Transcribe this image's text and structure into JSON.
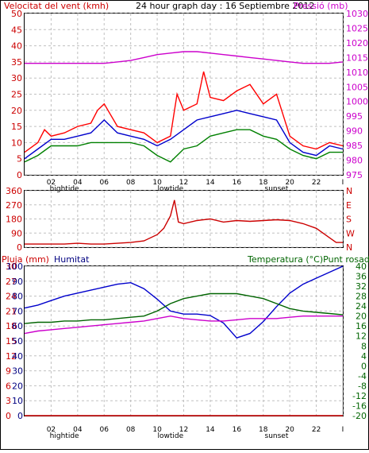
{
  "header": {
    "title": "24 hour graph day : 16 Septiembre 2012",
    "left_label": "Velocitat del vent (kmh)",
    "right_label": "Pressió (mb)"
  },
  "colors": {
    "wind_avg": "#008000",
    "wind_gust": "#ff0000",
    "wind_mid": "#0000cc",
    "pressure": "#cc00cc",
    "direction": "#cc0000",
    "humidity": "#0000cc",
    "temperature": "#006400",
    "dewpoint": "#cc00cc",
    "rain": "#cc0000",
    "left_axis": "#cc0000",
    "pressure_axis": "#cc00cc",
    "temp_axis": "#006400",
    "hum_axis": "#000080",
    "grid": "#c0c0c0",
    "frame": "#000000"
  },
  "x_axis": {
    "ticks": [
      "02",
      "04",
      "06",
      "08",
      "10",
      "12",
      "14",
      "16",
      "18",
      "20",
      "22",
      "I"
    ],
    "markers": [
      {
        "label": "hightide",
        "hour": 3
      },
      {
        "label": "lowtide",
        "hour": 11
      },
      {
        "label": "sunset",
        "hour": 19
      }
    ]
  },
  "chart_data": [
    {
      "type": "line",
      "x_label": "hour",
      "ylabel": "Velocitat del vent (kmh)",
      "ylim": [
        0,
        50
      ],
      "y_ticks": [
        0,
        5,
        10,
        15,
        20,
        25,
        30,
        35,
        40,
        45,
        50
      ],
      "y2label": "Pressió (mb)",
      "y2lim": [
        975,
        1030
      ],
      "y2_ticks": [
        975,
        980,
        985,
        990,
        995,
        1000,
        1005,
        1010,
        1015,
        1020,
        1025,
        1030
      ],
      "series": [
        {
          "key": "wind_gust",
          "x": [
            0,
            1,
            1.5,
            2,
            3,
            4,
            5,
            5.5,
            6,
            7,
            8,
            9,
            10,
            11,
            11.5,
            12,
            13,
            13.5,
            14,
            15,
            16,
            17,
            18,
            19,
            20,
            21,
            22,
            23,
            24
          ],
          "y": [
            7,
            10,
            14,
            12,
            13,
            15,
            16,
            20,
            22,
            15,
            14,
            13,
            10,
            12,
            25,
            20,
            22,
            32,
            24,
            23,
            26,
            28,
            22,
            25,
            12,
            9,
            8,
            10,
            9
          ]
        },
        {
          "key": "wind_mid",
          "x": [
            0,
            1,
            2,
            3,
            4,
            5,
            6,
            7,
            8,
            9,
            10,
            11,
            12,
            13,
            14,
            15,
            16,
            17,
            18,
            19,
            20,
            21,
            22,
            23,
            24
          ],
          "y": [
            5,
            8,
            11,
            11,
            12,
            13,
            17,
            13,
            12,
            11,
            9,
            11,
            14,
            17,
            18,
            19,
            20,
            19,
            18,
            17,
            10,
            7,
            6,
            9,
            8
          ]
        },
        {
          "key": "wind_avg",
          "x": [
            0,
            1,
            2,
            3,
            4,
            5,
            6,
            7,
            8,
            9,
            10,
            11,
            12,
            13,
            14,
            15,
            16,
            17,
            18,
            19,
            20,
            21,
            22,
            23,
            24
          ],
          "y": [
            4,
            6,
            9,
            9,
            9,
            10,
            10,
            10,
            10,
            9,
            6,
            4,
            8,
            9,
            12,
            13,
            14,
            14,
            12,
            11,
            8,
            6,
            5,
            7,
            7
          ]
        },
        {
          "key": "pressure",
          "axis": "y2",
          "x": [
            0,
            1,
            2,
            3,
            4,
            5,
            6,
            7,
            8,
            9,
            10,
            11,
            12,
            13,
            14,
            15,
            16,
            17,
            18,
            19,
            20,
            21,
            22,
            23,
            24
          ],
          "y": [
            1013,
            1013,
            1013,
            1013,
            1013,
            1013,
            1013,
            1013.5,
            1014,
            1015,
            1016,
            1016.5,
            1017,
            1017,
            1016.5,
            1016,
            1015.5,
            1015,
            1014.5,
            1014,
            1013.5,
            1013,
            1013,
            1013,
            1013.5
          ]
        }
      ]
    },
    {
      "type": "line",
      "x_label": "hour",
      "ylabel": "",
      "ylim": [
        0,
        360
      ],
      "y_ticks": [
        0,
        90,
        180,
        270,
        360
      ],
      "right_labels": [
        "N",
        "W",
        "S",
        "E",
        "N"
      ],
      "series": [
        {
          "key": "direction",
          "x": [
            0,
            1,
            2,
            3,
            4,
            5,
            6,
            7,
            8,
            9,
            10,
            10.5,
            11,
            11.3,
            11.6,
            12,
            13,
            14,
            15,
            16,
            17,
            18,
            19,
            20,
            21,
            22,
            23,
            23.5,
            24
          ],
          "y": [
            20,
            20,
            20,
            20,
            25,
            20,
            20,
            25,
            30,
            40,
            80,
            120,
            200,
            300,
            160,
            150,
            170,
            180,
            160,
            170,
            165,
            170,
            175,
            170,
            150,
            120,
            60,
            30,
            30
          ]
        }
      ]
    },
    {
      "type": "line",
      "x_label": "hour",
      "ylabel": "Pluja (mm)",
      "ylim": [
        0,
        30
      ],
      "y_ticks": [
        0,
        3,
        6,
        9,
        12,
        15,
        18,
        21,
        24,
        27,
        30
      ],
      "y_hum_label": "Humitat",
      "y_hum_lim": [
        0,
        100
      ],
      "y_hum_ticks": [
        0,
        10,
        20,
        30,
        40,
        50,
        60,
        70,
        80,
        90,
        100
      ],
      "y2label": "Temperatura (°C)Punt rosada",
      "y2lim": [
        -20,
        40
      ],
      "y2_ticks": [
        -20,
        -16,
        -12,
        -8,
        -4,
        0,
        4,
        8,
        12,
        16,
        20,
        24,
        28,
        32,
        36,
        40
      ],
      "series": [
        {
          "key": "humidity",
          "axis": "hum",
          "x": [
            0,
            1,
            2,
            3,
            4,
            5,
            6,
            7,
            8,
            9,
            10,
            11,
            12,
            13,
            14,
            15,
            16,
            17,
            18,
            19,
            20,
            21,
            22,
            23,
            24
          ],
          "y": [
            72,
            74,
            77,
            80,
            82,
            84,
            86,
            88,
            89,
            85,
            78,
            70,
            68,
            68,
            67,
            62,
            52,
            55,
            63,
            73,
            82,
            88,
            92,
            96,
            100
          ]
        },
        {
          "key": "temperature",
          "axis": "y2",
          "x": [
            0,
            1,
            2,
            3,
            4,
            5,
            6,
            7,
            8,
            9,
            10,
            11,
            12,
            13,
            14,
            15,
            16,
            17,
            18,
            19,
            20,
            21,
            22,
            23,
            24
          ],
          "y": [
            17,
            17.5,
            17.5,
            18,
            18,
            18.5,
            18.5,
            19,
            19.5,
            20,
            22,
            25,
            27,
            28,
            29,
            29,
            29,
            28,
            27,
            25,
            23,
            22,
            21.5,
            21,
            20.5
          ]
        },
        {
          "key": "dewpoint",
          "axis": "y2",
          "x": [
            0,
            1,
            2,
            3,
            4,
            5,
            6,
            7,
            8,
            9,
            10,
            11,
            12,
            13,
            14,
            15,
            16,
            17,
            18,
            19,
            20,
            21,
            22,
            23,
            24
          ],
          "y": [
            13,
            14,
            14.5,
            15,
            15.5,
            16,
            16.5,
            17,
            17.5,
            18,
            19,
            20,
            19,
            18.5,
            18,
            18,
            18.5,
            19,
            19,
            19,
            19.5,
            20,
            20,
            20,
            20
          ]
        },
        {
          "key": "rain",
          "x": [
            0,
            24
          ],
          "y": [
            0,
            0
          ]
        }
      ]
    }
  ]
}
